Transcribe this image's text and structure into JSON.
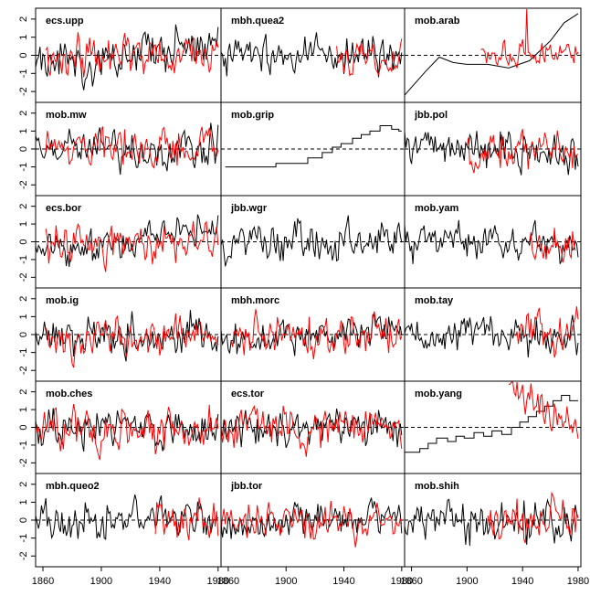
{
  "chart_data": {
    "type": "line",
    "layout": {
      "rows": 6,
      "cols": 3
    },
    "x_ticks": [
      1860,
      1900,
      1940,
      1980
    ],
    "y_ticks": [
      -2,
      -1,
      0,
      1,
      2
    ],
    "xlim": [
      1855,
      1982
    ],
    "ylim": [
      -2.6,
      2.6
    ],
    "reference_line": {
      "y": 0,
      "style": "dashed"
    },
    "series_colors": {
      "black": "#000000",
      "red": "#ff0000"
    },
    "panels": [
      {
        "title": "ecs.upp",
        "black": {
          "range": [
            1855,
            1980
          ],
          "level": 0.0,
          "amp": 1.0,
          "trend": 0.6,
          "seed": 1
        },
        "red": {
          "range": [
            1862,
            1980
          ],
          "amp": 1.0,
          "seed": 2
        }
      },
      {
        "title": "mbh.quea2",
        "black": {
          "range": [
            1855,
            1980
          ],
          "amp": 1.0,
          "seed": 3
        },
        "red": {
          "range": [
            1935,
            1980
          ],
          "amp": 1.0,
          "seed": 4
        }
      },
      {
        "title": "mob.arab",
        "black": {
          "range": [
            1855,
            1980
          ],
          "points": [
            [
              1855,
              -2.2
            ],
            [
              1870,
              -0.9
            ],
            [
              1880,
              -0.1
            ],
            [
              1890,
              -0.4
            ],
            [
              1900,
              -0.5
            ],
            [
              1915,
              -0.5
            ],
            [
              1930,
              -0.7
            ],
            [
              1945,
              -0.3
            ],
            [
              1960,
              0.8
            ],
            [
              1970,
              1.8
            ],
            [
              1980,
              2.3
            ]
          ]
        },
        "red": {
          "range": [
            1910,
            1980
          ],
          "amp": 0.6,
          "seed": 5,
          "spike": {
            "year": 1943,
            "value": 2.6
          }
        }
      },
      {
        "title": "mob.mw",
        "black": {
          "range": [
            1855,
            1980
          ],
          "amp": 1.0,
          "seed": 6
        },
        "red": {
          "range": [
            1862,
            1980
          ],
          "amp": 1.0,
          "seed": 7
        }
      },
      {
        "title": "mob.grip",
        "black": {
          "range": [
            1858,
            1980
          ],
          "steps": [
            [
              1858,
              -1.0
            ],
            [
              1893,
              -0.8
            ],
            [
              1915,
              -0.5
            ],
            [
              1925,
              -0.2
            ],
            [
              1932,
              0.1
            ],
            [
              1938,
              0.3
            ],
            [
              1946,
              0.6
            ],
            [
              1952,
              0.8
            ],
            [
              1958,
              1.0
            ],
            [
              1965,
              1.3
            ],
            [
              1973,
              1.1
            ],
            [
              1978,
              1.0
            ]
          ]
        }
      },
      {
        "title": "jbb.pol",
        "black": {
          "range": [
            1855,
            1980
          ],
          "amp": 1.0,
          "seed": 8
        },
        "red": {
          "range": [
            1900,
            1980
          ],
          "amp": 1.0,
          "seed": 9
        }
      },
      {
        "title": "ecs.bor",
        "black": {
          "range": [
            1855,
            1980
          ],
          "amp": 0.9,
          "trend": 0.8,
          "seed": 10
        },
        "red": {
          "range": [
            1862,
            1980
          ],
          "amp": 1.0,
          "seed": 11
        }
      },
      {
        "title": "jbb.wgr",
        "black": {
          "range": [
            1855,
            1980
          ],
          "amp": 1.0,
          "seed": 12
        }
      },
      {
        "title": "mob.yam",
        "black": {
          "range": [
            1855,
            1980
          ],
          "amp": 1.0,
          "seed": 13
        },
        "red": {
          "range": [
            1945,
            1978
          ],
          "amp": 1.0,
          "seed": 14
        }
      },
      {
        "title": "mob.ig",
        "black": {
          "range": [
            1855,
            1980
          ],
          "amp": 1.0,
          "seed": 15
        },
        "red": {
          "range": [
            1862,
            1980
          ],
          "amp": 1.0,
          "seed": 16
        }
      },
      {
        "title": "mbh.morc",
        "black": {
          "range": [
            1855,
            1980
          ],
          "amp": 0.9,
          "trend": 0.5,
          "seed": 17
        },
        "red": {
          "range": [
            1862,
            1980
          ],
          "amp": 1.0,
          "seed": 18
        }
      },
      {
        "title": "mob.tay",
        "black": {
          "range": [
            1855,
            1980
          ],
          "amp": 1.0,
          "seed": 19
        },
        "red": {
          "range": [
            1935,
            1980
          ],
          "amp": 1.0,
          "seed": 20
        }
      },
      {
        "title": "mob.ches",
        "black": {
          "range": [
            1855,
            1980
          ],
          "amp": 1.0,
          "seed": 21
        },
        "red": {
          "range": [
            1855,
            1980
          ],
          "amp": 1.1,
          "seed": 22
        }
      },
      {
        "title": "ecs.tor",
        "black": {
          "range": [
            1855,
            1980
          ],
          "amp": 1.0,
          "seed": 23
        },
        "red": {
          "range": [
            1855,
            1980
          ],
          "amp": 1.1,
          "seed": 24
        }
      },
      {
        "title": "mob.yang",
        "black": {
          "range": [
            1855,
            1980
          ],
          "steps": [
            [
              1855,
              -1.4
            ],
            [
              1866,
              -1.2
            ],
            [
              1872,
              -0.9
            ],
            [
              1878,
              -0.6
            ],
            [
              1886,
              -0.8
            ],
            [
              1892,
              -0.5
            ],
            [
              1898,
              -0.6
            ],
            [
              1905,
              -0.3
            ],
            [
              1912,
              -0.5
            ],
            [
              1918,
              -0.2
            ],
            [
              1925,
              -0.4
            ],
            [
              1932,
              0.0
            ],
            [
              1938,
              0.3
            ],
            [
              1944,
              0.6
            ],
            [
              1950,
              0.9
            ],
            [
              1956,
              1.2
            ],
            [
              1962,
              1.5
            ],
            [
              1968,
              1.8
            ],
            [
              1974,
              1.5
            ]
          ]
        },
        "red": {
          "range": [
            1930,
            1980
          ],
          "amp": 0.9,
          "trend": -1.5,
          "level": 1.0,
          "seed": 25
        }
      },
      {
        "title": "mbh.queo2",
        "black": {
          "range": [
            1855,
            1980
          ],
          "amp": 1.0,
          "seed": 26
        },
        "red": {
          "range": [
            1937,
            1980
          ],
          "amp": 1.0,
          "seed": 27
        }
      },
      {
        "title": "jbb.tor",
        "black": {
          "range": [
            1855,
            1980
          ],
          "amp": 0.9,
          "trend": 0.6,
          "seed": 28
        },
        "red": {
          "range": [
            1855,
            1980
          ],
          "amp": 1.0,
          "seed": 29
        }
      },
      {
        "title": "mob.shih",
        "black": {
          "range": [
            1855,
            1980
          ],
          "amp": 1.0,
          "seed": 30
        },
        "red": {
          "range": [
            1915,
            1980
          ],
          "amp": 1.0,
          "seed": 31
        }
      }
    ]
  }
}
